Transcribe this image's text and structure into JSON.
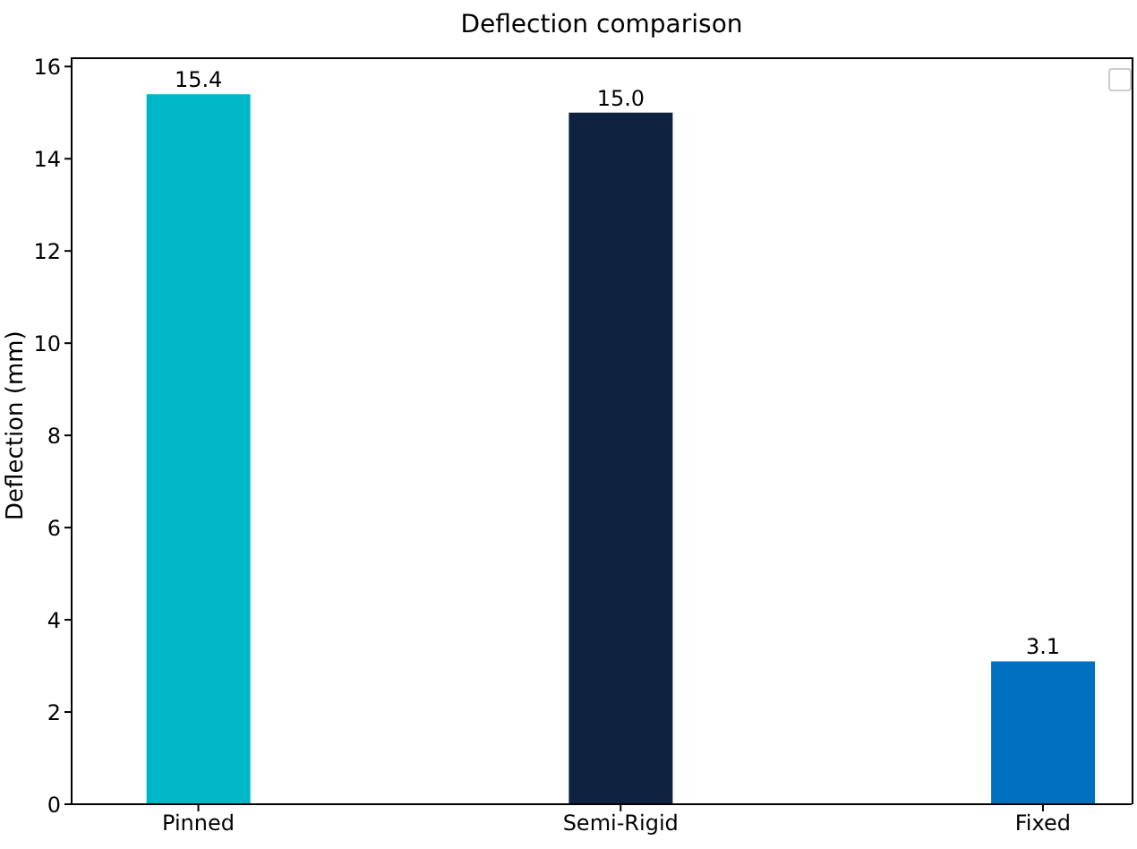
{
  "chart_data": {
    "type": "bar",
    "title": "Deflection comparison",
    "ylabel": "Deflection (mm)",
    "categories": [
      "Pinned",
      "Semi-Rigid",
      "Fixed"
    ],
    "values": [
      15.4,
      15,
      3.1
    ],
    "colors": [
      "#00b7c7",
      "#0f2341",
      "#0070c0"
    ],
    "value_labels": [
      "15.4",
      "15.0",
      "3.1"
    ],
    "ylim": [
      0,
      16.2
    ],
    "yticks": [
      0,
      2,
      4,
      6,
      8,
      10,
      12,
      14,
      16
    ],
    "grid": false
  }
}
